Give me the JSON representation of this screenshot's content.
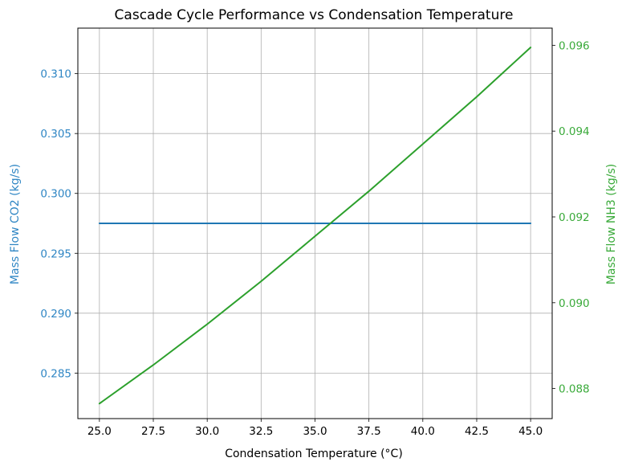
{
  "chart_data": {
    "type": "line",
    "title": "Cascade Cycle Performance vs Condensation Temperature",
    "xlabel": "Condensation Temperature (°C)",
    "ylabel_left": "Mass Flow CO2 (kg/s)",
    "ylabel_right": "Mass Flow NH3 (kg/s)",
    "xlim": [
      24.0,
      46.0
    ],
    "ylim_left": [
      0.2812,
      0.3138
    ],
    "ylim_right": [
      0.0873,
      0.0964
    ],
    "x_ticks": [
      "25.0",
      "27.5",
      "30.0",
      "32.5",
      "35.0",
      "37.5",
      "40.0",
      "42.5",
      "45.0"
    ],
    "y_left_ticks": [
      "0.285",
      "0.290",
      "0.295",
      "0.300",
      "0.305",
      "0.310"
    ],
    "y_right_ticks": [
      "0.088",
      "0.090",
      "0.092",
      "0.094",
      "0.096"
    ],
    "grid": true,
    "colors": {
      "left": "#1f77b4",
      "right": "#2ca02c",
      "left_label": "#2f86c4",
      "right_label": "#3aaa3a"
    },
    "series": [
      {
        "axis": "left",
        "x": [
          25,
          30,
          35,
          40,
          45
        ],
        "y": [
          0.2975,
          0.2975,
          0.2975,
          0.2975,
          0.2975
        ]
      },
      {
        "axis": "right",
        "x": [
          25,
          27.5,
          30,
          32.5,
          35,
          37.5,
          40,
          42.5,
          45
        ],
        "y": [
          0.08765,
          0.08855,
          0.0895,
          0.0905,
          0.09155,
          0.0926,
          0.0937,
          0.0948,
          0.09595
        ]
      }
    ]
  }
}
